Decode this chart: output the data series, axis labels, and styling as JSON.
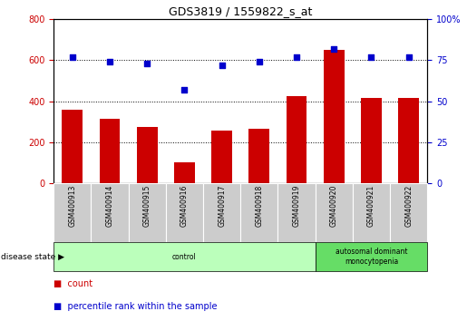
{
  "title": "GDS3819 / 1559822_s_at",
  "samples": [
    "GSM400913",
    "GSM400914",
    "GSM400915",
    "GSM400916",
    "GSM400917",
    "GSM400918",
    "GSM400919",
    "GSM400920",
    "GSM400921",
    "GSM400922"
  ],
  "counts": [
    360,
    315,
    275,
    100,
    255,
    265,
    425,
    650,
    415,
    415
  ],
  "percentile_ranks": [
    77,
    74,
    73,
    57,
    72,
    74,
    77,
    82,
    77,
    77
  ],
  "ylim_left": [
    0,
    800
  ],
  "ylim_right": [
    0,
    100
  ],
  "yticks_left": [
    0,
    200,
    400,
    600,
    800
  ],
  "yticks_right": [
    0,
    25,
    50,
    75,
    100
  ],
  "bar_color": "#cc0000",
  "dot_color": "#0000cc",
  "bar_width": 0.55,
  "groups": [
    {
      "label": "control",
      "start": 0,
      "end": 7,
      "color": "#bbffbb"
    },
    {
      "label": "autosomal dominant\nmonocytopenia",
      "start": 7,
      "end": 10,
      "color": "#66dd66"
    }
  ],
  "disease_state_label": "disease state",
  "legend_bar_label": "count",
  "legend_dot_label": "percentile rank within the sample",
  "tick_area_color": "#cccccc"
}
